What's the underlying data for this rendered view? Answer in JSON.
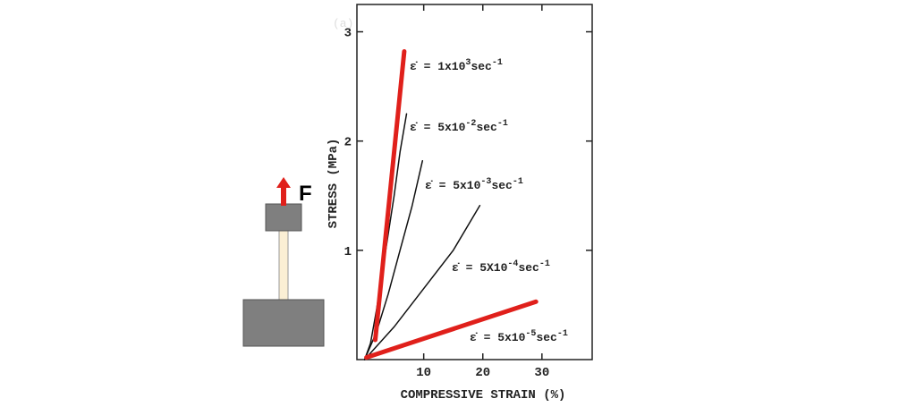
{
  "diagram": {
    "force_label": "F"
  },
  "chart_data": {
    "type": "line",
    "panel_label": "(a)",
    "x_label": "COMPRESSIVE STRAIN (%)",
    "y_label": "STRESS (MPa)",
    "xlim": [
      -1.3,
      38.5
    ],
    "ylim": [
      0,
      3.25
    ],
    "xticks": [
      10,
      20,
      30
    ],
    "yticks": [
      1,
      2,
      3
    ],
    "grid": false,
    "series": [
      {
        "color": "#111111",
        "x": [
          0,
          1,
          2,
          3,
          4,
          5,
          6,
          7.1
        ],
        "values": [
          0,
          0.15,
          0.45,
          0.8,
          1.15,
          1.5,
          1.9,
          2.25
        ]
      },
      {
        "color": "#111111",
        "x": [
          0,
          2,
          4,
          6,
          8,
          9.8
        ],
        "values": [
          0,
          0.25,
          0.6,
          1.0,
          1.4,
          1.82
        ]
      },
      {
        "color": "#111111",
        "x": [
          0,
          5,
          10,
          15,
          19.5
        ],
        "values": [
          0,
          0.3,
          0.65,
          1.0,
          1.41
        ]
      },
      {
        "color": "#e0201b",
        "x": [
          1.8,
          6.7
        ],
        "values": [
          0.18,
          2.82
        ]
      },
      {
        "color": "#e0201b",
        "x": [
          0.3,
          29
        ],
        "values": [
          0.02,
          0.53
        ]
      }
    ],
    "annotations": [
      {
        "base": "ε̇ = 1x10",
        "exp": "3",
        "unit": "sec",
        "unit_exp": "-1"
      },
      {
        "base": "ε̇ = 5x10",
        "exp": "-2",
        "unit": "sec",
        "unit_exp": "-1"
      },
      {
        "base": "ε̇ = 5x10",
        "exp": "-3",
        "unit": "sec",
        "unit_exp": "-1"
      },
      {
        "base": "ε̇ = 5X10",
        "exp": "-4",
        "unit": "sec",
        "unit_exp": "-1"
      },
      {
        "base": "ε̇ = 5x10",
        "exp": "-5",
        "unit": "sec",
        "unit_exp": "-1"
      }
    ]
  }
}
